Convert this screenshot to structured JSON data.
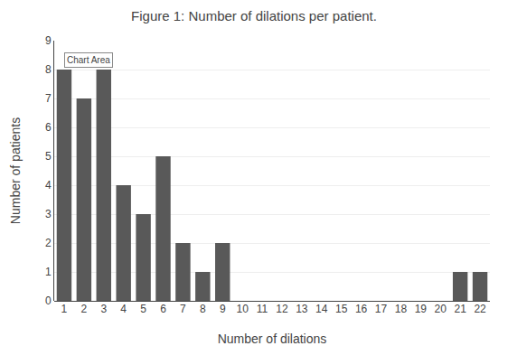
{
  "chart_data": {
    "type": "bar",
    "title": "Figure 1: Number of dilations per patient.",
    "x_label": "Number of dilations",
    "y_label": "Number of patients",
    "categories": [
      1,
      2,
      3,
      4,
      5,
      6,
      7,
      8,
      9,
      10,
      11,
      12,
      13,
      14,
      15,
      16,
      17,
      18,
      19,
      20,
      21,
      22
    ],
    "values": [
      8,
      7,
      8,
      4,
      3,
      5,
      2,
      1,
      2,
      0,
      0,
      0,
      0,
      0,
      0,
      0,
      0,
      0,
      0,
      0,
      1,
      1
    ],
    "color": "#595959",
    "ylim": [
      0,
      9
    ],
    "yticks": [
      0,
      1,
      2,
      3,
      4,
      5,
      6,
      7,
      8,
      9
    ],
    "grid": true,
    "annotations": [
      {
        "text": "Chart Area",
        "x": 1,
        "y": 8
      }
    ]
  }
}
